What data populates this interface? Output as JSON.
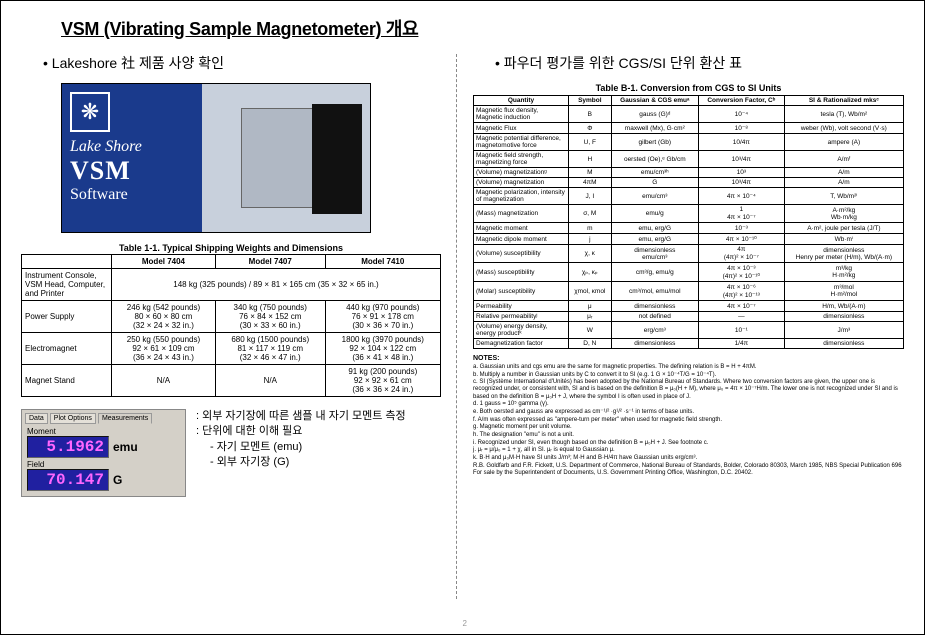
{
  "title": "VSM (Vibrating Sample Magnetometer) 개요",
  "left": {
    "bullet": "Lakeshore 社 제품 사양 확인",
    "ls": {
      "line1": "Lake Shore",
      "line2": "VSM",
      "line3": "Software"
    },
    "t1_caption": "Table 1-1. Typical Shipping Weights and Dimensions",
    "t1_headers": [
      "",
      "Model 7404",
      "Model 7407",
      "Model 7410"
    ],
    "t1_rows": [
      {
        "lbl": "Instrument Console, VSM Head, Computer, and Printer",
        "span": "148 kg (325 pounds) / 89 × 81 × 165 cm (35 × 32 × 65 in.)"
      },
      {
        "lbl": "Power Supply",
        "c1": "246 kg (542 pounds)\n80 × 60 × 80 cm\n(32 × 24 × 32 in.)",
        "c2": "340 kg (750 pounds)\n76 × 84 × 152 cm\n(30 × 33 × 60 in.)",
        "c3": "440 kg (970 pounds)\n76 × 91 × 178 cm\n(30 × 36 × 70 in.)"
      },
      {
        "lbl": "Electromagnet",
        "c1": "250 kg (550 pounds)\n92 × 61 × 109 cm\n(36 × 24 × 43 in.)",
        "c2": "680 kg (1500 pounds)\n81 × 117 × 119 cm\n(32 × 46 × 47 in.)",
        "c3": "1800 kg (3970 pounds)\n92 × 104 × 122 cm\n(36 × 41 × 48 in.)"
      },
      {
        "lbl": "Magnet Stand",
        "c1": "N/A",
        "c2": "N/A",
        "c3": "91 kg (200 pounds)\n92 × 92 × 61 cm\n(36 × 36 × 24 in.)"
      }
    ],
    "meas": {
      "tabs": [
        "Data",
        "Plot Options",
        "Measurements"
      ],
      "moment_lbl": "Moment",
      "moment_val": "5.1962",
      "moment_unit": "emu",
      "field_lbl": "Field",
      "field_val": "70.147",
      "field_unit": "G"
    },
    "notes": {
      "l1": ": 외부 자기장에 따른 샘플 내 자기 모멘트 측정",
      "l2": ": 단위에 대한 이해 필요",
      "l3": "- 자기 모멘트 (emu)",
      "l4": "- 외부 자기장 (G)"
    }
  },
  "right": {
    "bullet": "파우더 평가를 위한 CGS/SI 단위 환산 표",
    "tb1_caption": "Table B-1. Conversion from CGS to SI Units",
    "tb1_headers": [
      "Quantity",
      "Symbol",
      "Gaussian & CGS emuᵃ",
      "Conversion Factor, Cᵇ",
      "SI & Rationalized mksᶜ"
    ],
    "tb1_rows": [
      [
        "Magnetic flux density, Magnetic induction",
        "B",
        "gauss (G)ᵈ",
        "10⁻⁴",
        "tesla (T), Wb/m²"
      ],
      [
        "Magnetic Flux",
        "Φ",
        "maxwell (Mx), G·cm²",
        "10⁻⁸",
        "weber (Wb), volt second (V·s)"
      ],
      [
        "Magnetic potential difference, magnetomotive force",
        "U, F",
        "gilbert (Gb)",
        "10/4π",
        "ampere (A)"
      ],
      [
        "Magnetic field strength, magnetizing force",
        "H",
        "oersted (Oe),ᵉ Gb/cm",
        "10³/4π",
        "A/mᶠ"
      ],
      [
        "(Volume) magnetizationᵍ",
        "M",
        "emu/cm³ʰ",
        "10³",
        "A/m"
      ],
      [
        "(Volume) magnetization",
        "4πM",
        "G",
        "10³/4π",
        "A/m"
      ],
      [
        "Magnetic polarization, intensity of magnetization",
        "J, I",
        "emu/cm³",
        "4π × 10⁻⁴",
        "T, Wb/m²ⁱ"
      ],
      [
        "(Mass) magnetization",
        "σ, M",
        "emu/g",
        "1\n4π × 10⁻⁷",
        "A·m²/kg\nWb·m/kg"
      ],
      [
        "Magnetic moment",
        "m",
        "emu, erg/G",
        "10⁻³",
        "A·m², joule per tesla (J/T)"
      ],
      [
        "Magnetic dipole moment",
        "j",
        "emu, erg/G",
        "4π × 10⁻¹⁰",
        "Wb·mⁱ"
      ],
      [
        "(Volume) susceptibility",
        "χ, κ",
        "dimensionless\nemu/cm³",
        "4π\n(4π)² × 10⁻⁷",
        "dimensionless\nHenry per meter (H/m), Wb/(A·m)"
      ],
      [
        "(Mass) susceptibility",
        "χₚ, κₚ",
        "cm³/g, emu/g",
        "4π × 10⁻³\n(4π)² × 10⁻¹⁰",
        "m³/kg\nH·m²/kg"
      ],
      [
        "(Molar) susceptibility",
        "χmol, κmol",
        "cm³/mol, emu/mol",
        "4π × 10⁻⁶\n(4π)² × 10⁻¹³",
        "m³/mol\nH·m²/mol"
      ],
      [
        "Permeability",
        "μ",
        "dimensionless",
        "4π × 10⁻⁷",
        "H/m, Wb/(A·m)"
      ],
      [
        "Relative permeabilityʲ",
        "μᵣ",
        "not defined",
        "—",
        "dimensionless"
      ],
      [
        "(Volume) energy density, energy productᵏ",
        "W",
        "erg/cm³",
        "10⁻¹",
        "J/m³"
      ],
      [
        "Demagnetization factor",
        "D, N",
        "dimensionless",
        "1/4π",
        "dimensionless"
      ]
    ],
    "notes_hd": "NOTES:",
    "notes": [
      "a.  Gaussian units and cgs emu are the same for magnetic properties. The defining relation is B = H + 4πM.",
      "b.  Multiply a number in Gaussian units by C to convert it to SI (e.g. 1 G × 10⁻⁴T/G = 10⁻⁴T).",
      "c.  SI (Système International d'Unités) has been adopted by the National Bureau of Standards. Where two conversion factors are given, the upper one is recognized under, or consistent with, SI and is based on the definition B = μ₀(H + M), where μ₀ = 4π × 10⁻⁷H/m. The lower one is not recognized under SI and is based on the definition B = μ₀H + J, where the symbol I is often used in place of J.",
      "d.  1 gauss = 10⁵ gamma (γ).",
      "e.  Both oersted and gauss are expressed as cm⁻¹/² ·g¹/² ·s⁻¹ in terms of base units.",
      "f.  A/m was often expressed as \"ampere-turn per meter\" when used for magnetic field strength.",
      "g.  Magnetic moment per unit volume.",
      "h.  The designation \"emu\" is not a unit.",
      "i.  Recognized under SI, even though based on the definition B = μ₀H + J. See footnote c.",
      "j.  μᵣ = μ/μ₀ = 1 + χ, all in SI. μᵣ is equal to Gaussian μ.",
      "k.  B·H and μ₀M·H have SI units J/m³; M·H and B·H/4π have Gaussian units erg/cm³."
    ],
    "credit": "R.B. Goldfarb and F.R. Fickett, U.S. Department of Commerce, National Bureau of Standards, Bolder, Colorado 80303, March 1985, NBS Special Publication 696 For sale by the Superintendent of Documents, U.S. Government Printing Office, Washington, D.C. 20402."
  },
  "pagenum": "2"
}
